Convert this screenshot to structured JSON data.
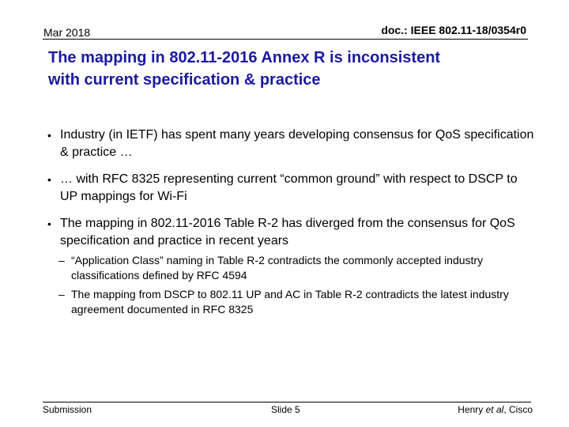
{
  "header": {
    "date": "Mar 2018",
    "doc_id": "doc.: IEEE 802.11-18/0354r0"
  },
  "title": {
    "line1": "The mapping in 802.11-2016 Annex R is inconsistent",
    "line2": "with current specification & practice"
  },
  "bullets": [
    {
      "marker": "•",
      "text": "Industry (in IETF) has spent many years developing consensus for QoS specification & practice …"
    },
    {
      "marker": "•",
      "text": "… with RFC 8325 representing current “common ground” with respect to DSCP to UP mappings for Wi-Fi"
    },
    {
      "marker": "•",
      "text": "The mapping in 802.11-2016 Table R-2 has diverged from the consensus for QoS specification and practice in recent years"
    }
  ],
  "sub_bullets": [
    {
      "marker": "–",
      "text": "“Application Class” naming in Table R-2 contradicts the commonly accepted industry classifications defined by RFC 4594"
    },
    {
      "marker": "–",
      "text": "The mapping from DSCP to 802.11 UP and AC in Table R-2 contradicts the latest industry agreement documented in RFC 8325"
    }
  ],
  "footer": {
    "left": "Submission",
    "center": "Slide 5",
    "author": "Henry ",
    "author_italic": "et al",
    "author_org": ", Cisco"
  },
  "colors": {
    "title": "#1a1aa0",
    "text": "#000000",
    "background": "#ffffff"
  }
}
